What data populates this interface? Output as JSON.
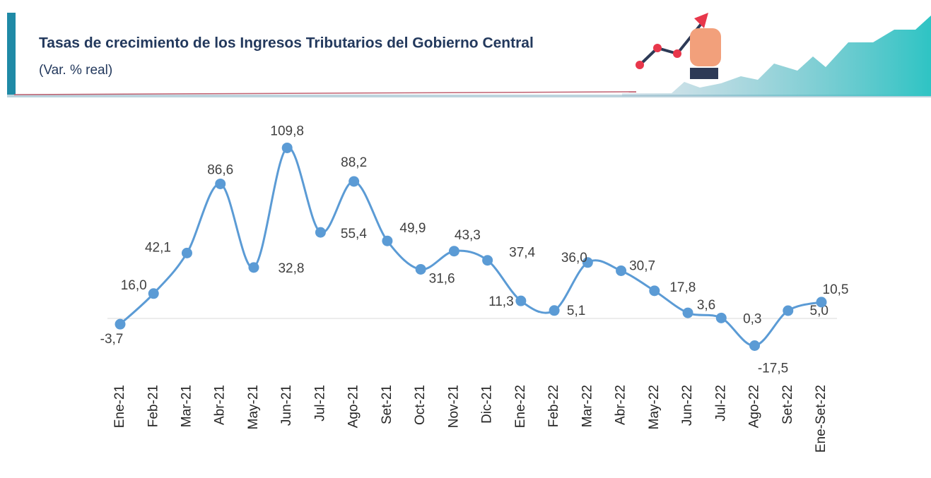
{
  "header": {
    "title": "Tasas de crecimiento de los Ingresos Tributarios del Gobierno Central",
    "subtitle": "(Var. % real)"
  },
  "chart_data": {
    "type": "line",
    "color": "#5b9bd5",
    "categories": [
      "Ene-21",
      "Feb-21",
      "Mar-21",
      "Abr-21",
      "May-21",
      "Jun-21",
      "Jul-21",
      "Ago-21",
      "Set-21",
      "Oct-21",
      "Nov-21",
      "Dic-21",
      "Ene-22",
      "Feb-22",
      "Mar-22",
      "Abr-22",
      "May-22",
      "Jun-22",
      "Jul-22",
      "Ago-22",
      "Set-22",
      "Ene-Set-22"
    ],
    "values": [
      -3.7,
      16.0,
      42.1,
      86.6,
      32.8,
      109.8,
      55.4,
      88.2,
      49.9,
      31.6,
      43.3,
      37.4,
      11.3,
      5.1,
      36.0,
      30.7,
      17.8,
      3.6,
      0.3,
      -17.5,
      5.0,
      10.5
    ],
    "value_labels": [
      "-3,7",
      "16,0",
      "42,1",
      "86,6",
      "32,8",
      "109,8",
      "55,4",
      "88,2",
      "49,9",
      "31,6",
      "43,3",
      "37,4",
      "11,3",
      "5,1",
      "36,0",
      "30,7",
      "17,8",
      "3,6",
      "0,3",
      "-17,5",
      "5,0",
      "10,5"
    ],
    "ylim": [
      -30,
      120
    ]
  }
}
